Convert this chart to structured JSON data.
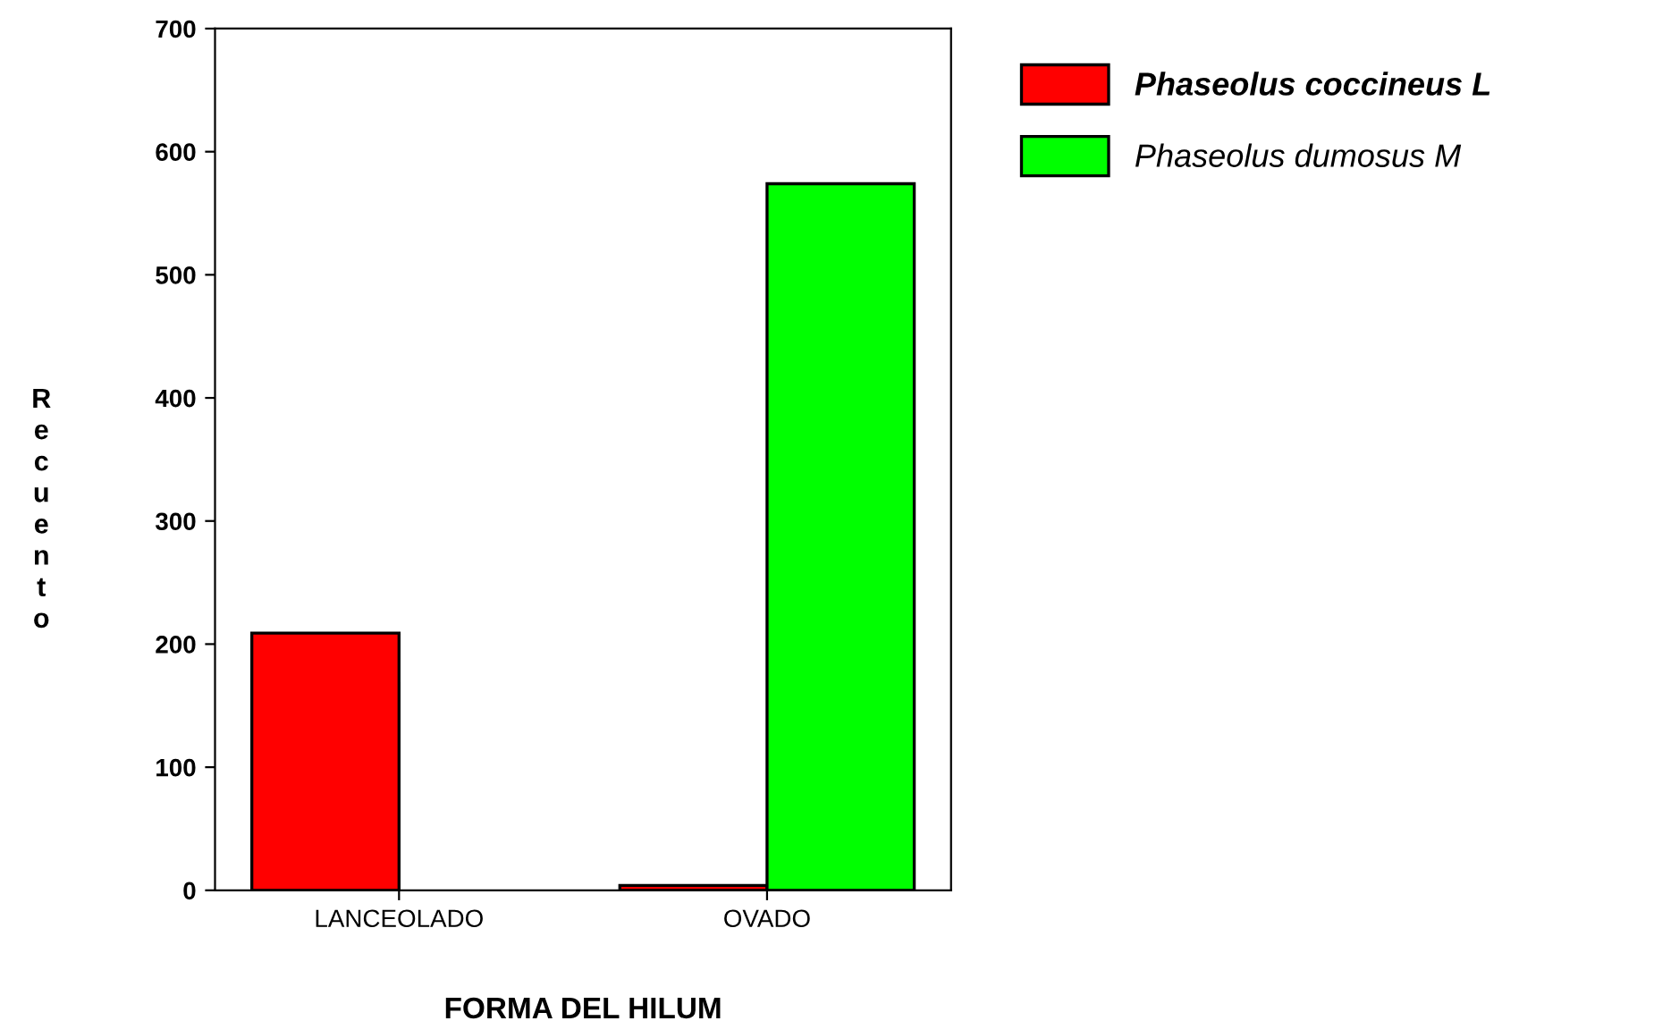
{
  "chart_data": {
    "type": "bar",
    "xlabel": "FORMA DEL HILUM",
    "ylabel": "Recuento",
    "categories": [
      "LANCEOLADO",
      "OVADO"
    ],
    "series": [
      {
        "name": "Phaseolus coccineus L",
        "color": "#ff0000",
        "values": [
          209,
          4
        ]
      },
      {
        "name": "Phaseolus dumosus M",
        "color": "#00ff00",
        "values": [
          null,
          574
        ]
      }
    ],
    "ylim": [
      0,
      700
    ],
    "yticks": [
      0,
      100,
      200,
      300,
      400,
      500,
      600,
      700
    ],
    "grid": false,
    "legend": "top right"
  }
}
